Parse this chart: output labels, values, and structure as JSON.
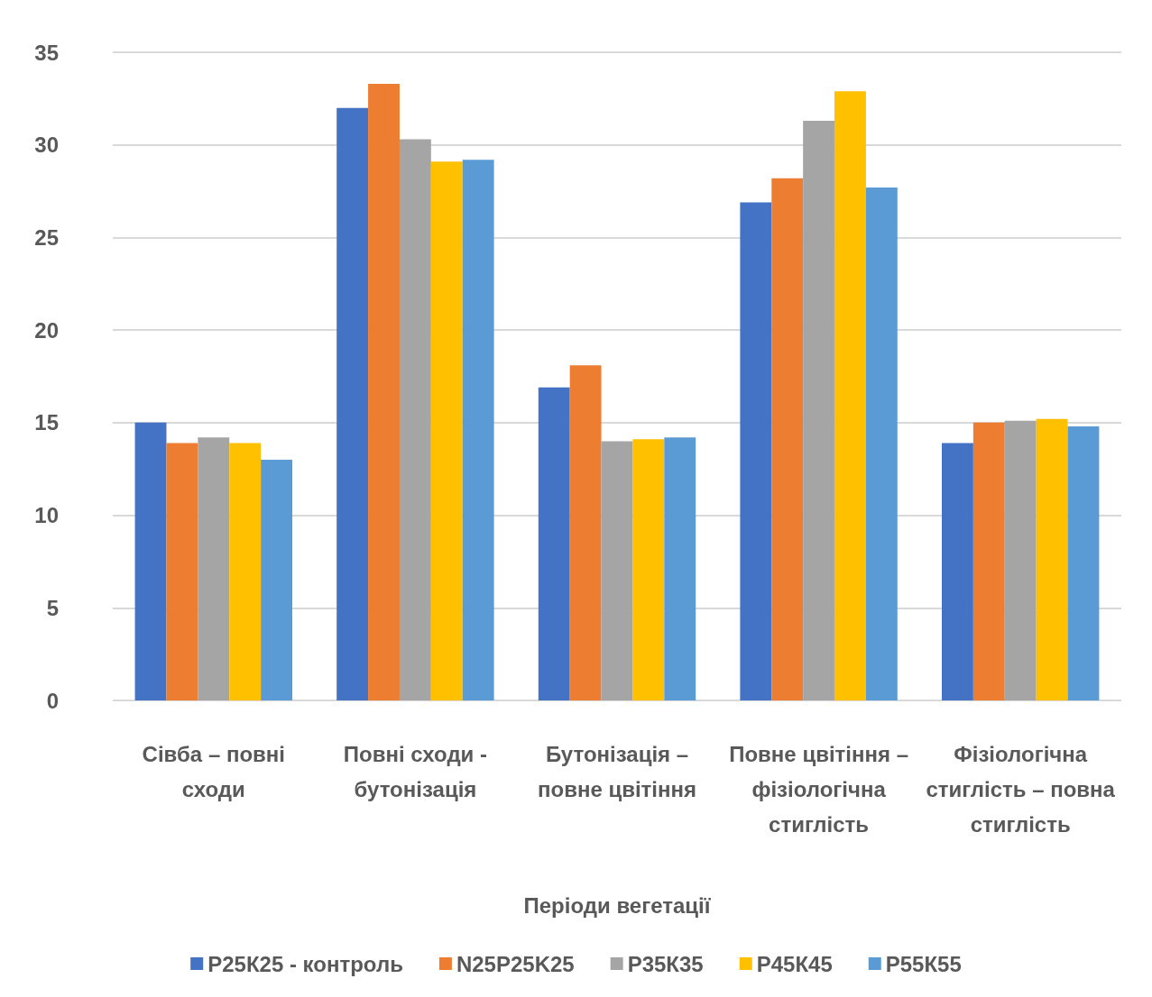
{
  "chart_data": {
    "type": "bar",
    "xlabel": "Періоди вегетації",
    "categories": [
      "Сівба – повні сходи",
      "Повні сходи - бутонізація",
      "Бутонізація – повне цвітіння",
      "Повне цвітіння – фізіологічна стиглість",
      "Фізіологічна стиглість – повна стиглість"
    ],
    "series": [
      {
        "name": "Р25К25 - контроль",
        "color": "#4472c4",
        "values": [
          15.0,
          32.0,
          16.9,
          26.9,
          13.9
        ]
      },
      {
        "name": "N25P25K25",
        "color": "#ed7d31",
        "values": [
          13.9,
          33.3,
          18.1,
          28.2,
          15.0
        ]
      },
      {
        "name": "Р35К35",
        "color": "#a5a5a5",
        "values": [
          14.2,
          30.3,
          14.0,
          31.3,
          15.1
        ]
      },
      {
        "name": "Р45К45",
        "color": "#ffc000",
        "values": [
          13.9,
          29.1,
          14.1,
          32.9,
          15.2
        ]
      },
      {
        "name": "Р55К55",
        "color": "#5b9bd5",
        "values": [
          13.0,
          29.2,
          14.2,
          27.7,
          14.8
        ]
      }
    ],
    "ylim": [
      0,
      35
    ],
    "yticks": [
      0,
      5,
      10,
      15,
      20,
      25,
      30,
      35
    ],
    "grid": "y",
    "legend": "bottom"
  }
}
